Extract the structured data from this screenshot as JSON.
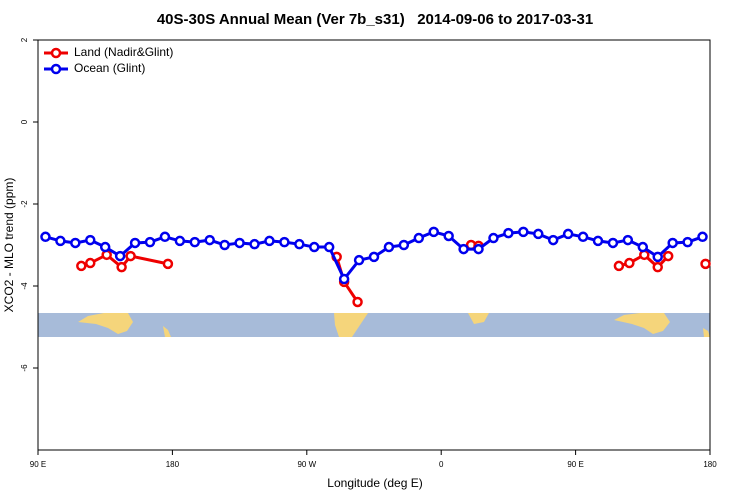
{
  "chart_data": {
    "type": "line",
    "title": "40S-30S Annual Mean (Ver 7b_s31)   2014-09-06 to 2017-03-31",
    "x_label": "Longitude (deg E)",
    "y_label": "XCO2 - MLO trend (ppm)",
    "xlim": [
      90,
      540
    ],
    "xticks": [
      {
        "value": 90,
        "label": "90 E"
      },
      180,
      {
        "value": 270,
        "label": "90 W"
      },
      {
        "value": 360,
        "label": "0"
      },
      {
        "value": 450,
        "label": "90 E"
      },
      {
        "value": 540,
        "label": "180"
      }
    ],
    "ylim": [
      -8,
      2
    ],
    "yticks": [
      2,
      0,
      -2,
      -4,
      -6
    ],
    "legend": "upper left",
    "series": [
      {
        "name": "Land (Nadir&Glint)",
        "color": "#ee0000",
        "x": [
          119,
          125,
          136,
          146,
          152,
          177,
          null,
          290,
          295,
          304,
          null,
          380,
          385,
          null,
          479,
          486,
          496,
          505,
          512,
          null,
          537
        ],
        "values": [
          -3.51,
          -3.44,
          -3.24,
          -3.54,
          -3.27,
          -3.46,
          null,
          -3.29,
          -3.9,
          -4.39,
          null,
          -3.0,
          -3.02,
          null,
          -3.51,
          -3.44,
          -3.24,
          -3.54,
          -3.27,
          null,
          -3.46
        ]
      },
      {
        "name": "Ocean (Glint)",
        "color": "#0000ee",
        "x": [
          95,
          105,
          115,
          125,
          135,
          145,
          155,
          165,
          175,
          185,
          195,
          205,
          215,
          225,
          235,
          245,
          255,
          265,
          275,
          285,
          295,
          305,
          315,
          325,
          335,
          345,
          355,
          365,
          375,
          385,
          395,
          405,
          415,
          425,
          435,
          445,
          455,
          465,
          475,
          485,
          495,
          505,
          515,
          525,
          535
        ],
        "values": [
          -2.8,
          -2.9,
          -2.95,
          -2.88,
          -3.05,
          -3.27,
          -2.95,
          -2.93,
          -2.8,
          -2.9,
          -2.93,
          -2.88,
          -3.0,
          -2.95,
          -2.98,
          -2.9,
          -2.93,
          -2.98,
          -3.05,
          -3.05,
          -3.83,
          -3.37,
          -3.29,
          -3.05,
          -3.0,
          -2.83,
          -2.68,
          -2.78,
          -3.1,
          -3.1,
          -2.83,
          -2.71,
          -2.68,
          -2.73,
          -2.88,
          -2.73,
          -2.8,
          -2.9,
          -2.95,
          -2.88,
          -3.05,
          -3.29,
          -2.95,
          -2.93,
          -2.8
        ]
      }
    ]
  }
}
